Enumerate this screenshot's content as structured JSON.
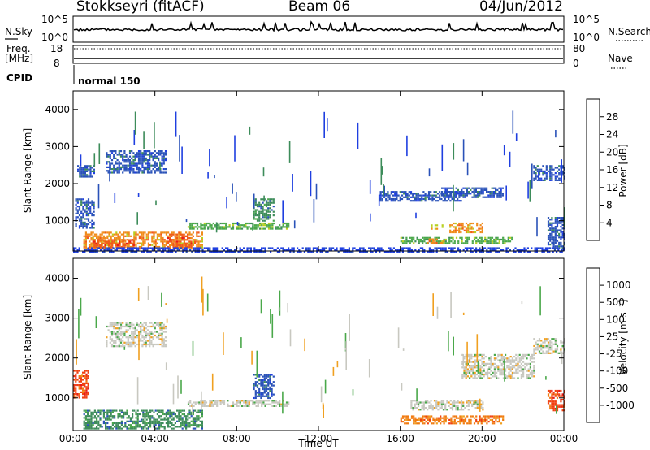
{
  "header": {
    "site": "Stokkseyri (fitACF)",
    "beam": "Beam 06",
    "date": "04/Jun/2012"
  },
  "top_panels": {
    "nsky_label": "N.Sky",
    "nsky_ticks": [
      "10^5",
      "10^0"
    ],
    "nsearch_label": "N.Search",
    "freq_label_1": "Freq.",
    "freq_label_2": "[MHz]",
    "freq_ticks": [
      "18",
      "8"
    ],
    "nave_ticks": [
      "80",
      "0"
    ],
    "nave_label": "Nave",
    "cpid_label": "CPID",
    "cpid_value": "normal 150"
  },
  "chart_data": [
    {
      "type": "heatmap",
      "name": "power",
      "ylabel": "Slant Range [km]",
      "yticks": [
        "1000",
        "2000",
        "3000",
        "4000"
      ],
      "ylim": [
        180,
        4500
      ],
      "xlim": [
        0,
        24
      ],
      "colorbar_label": "Power [dB]",
      "colorbar_ticks": [
        "4",
        "8",
        "12",
        "16",
        "20",
        "24",
        "28"
      ],
      "colorbar_colors": [
        "#1f3fe0",
        "#2a52b8",
        "#3d8c5a",
        "#4aa84a",
        "#b8d020",
        "#f08c1a",
        "#f05a1a",
        "#e81a1a"
      ],
      "regions": [
        {
          "t0": 0.5,
          "t1": 6.3,
          "r0": 250,
          "r1": 700,
          "level": 5
        },
        {
          "t0": 1.0,
          "t1": 3.0,
          "r0": 300,
          "r1": 500,
          "level": 6
        },
        {
          "t0": 4.6,
          "t1": 5.8,
          "r0": 300,
          "r1": 650,
          "level": 6
        },
        {
          "t0": 0.1,
          "t1": 1.0,
          "r0": 800,
          "r1": 1600,
          "level": 1
        },
        {
          "t0": 5.6,
          "t1": 10.5,
          "r0": 800,
          "r1": 950,
          "level": 3
        },
        {
          "t0": 8.8,
          "t1": 9.8,
          "r0": 1000,
          "r1": 1600,
          "level": 2
        },
        {
          "t0": 16.0,
          "t1": 21.5,
          "r0": 380,
          "r1": 560,
          "level": 3
        },
        {
          "t0": 17.3,
          "t1": 18.1,
          "r0": 400,
          "r1": 520,
          "level": 5
        },
        {
          "t0": 18.4,
          "t1": 20.0,
          "r0": 700,
          "r1": 950,
          "level": 5
        },
        {
          "t0": 17.5,
          "t1": 18.1,
          "r0": 800,
          "r1": 900,
          "level": 4
        },
        {
          "t0": 15.0,
          "t1": 19.0,
          "r0": 1550,
          "r1": 1800,
          "level": 1
        },
        {
          "t0": 18.0,
          "t1": 21.0,
          "r0": 1650,
          "r1": 1900,
          "level": 1
        },
        {
          "t0": 22.5,
          "t1": 24.0,
          "r0": 2100,
          "r1": 2500,
          "level": 1
        },
        {
          "t0": 0.2,
          "t1": 1.0,
          "r0": 2200,
          "r1": 2500,
          "level": 1
        },
        {
          "t0": 1.6,
          "t1": 4.5,
          "r0": 2300,
          "r1": 2900,
          "level": 1
        },
        {
          "t0": 23.2,
          "t1": 24.0,
          "r0": 250,
          "r1": 1100,
          "level": 1
        },
        {
          "t0": 0.0,
          "t1": 24.0,
          "r0": 180,
          "r1": 280,
          "level": 0
        }
      ]
    },
    {
      "type": "heatmap",
      "name": "velocity",
      "ylabel": "Slant Range [km]",
      "yticks": [
        "1000",
        "2000",
        "3000",
        "4000"
      ],
      "ylim": [
        180,
        4500
      ],
      "xlim": [
        0,
        24
      ],
      "xticks": [
        "00:00",
        "04:00",
        "08:00",
        "12:00",
        "16:00",
        "20:00",
        "00:00"
      ],
      "xlabel": "Time UT",
      "colorbar_label": "Velocity [m s⁻¹]",
      "colorbar_ticks": [
        "1000",
        "500",
        "100",
        "25",
        "-25",
        "-100",
        "-500",
        "-1000"
      ],
      "colorbar_colors": [
        "#1f3fe0",
        "#2a52b8",
        "#3d8c5a",
        "#4aa84a",
        "#c8c8c0",
        "#f0a020",
        "#f07a10",
        "#f04010",
        "#e81a1a"
      ],
      "regions": [
        {
          "t0": 0.5,
          "t1": 6.3,
          "r0": 250,
          "r1": 700,
          "level": 2
        },
        {
          "t0": 0.0,
          "t1": 0.7,
          "r0": 1000,
          "r1": 1700,
          "level": 7
        },
        {
          "t0": 5.6,
          "t1": 10.5,
          "r0": 800,
          "r1": 950,
          "level": 4
        },
        {
          "t0": 8.8,
          "t1": 9.8,
          "r0": 1000,
          "r1": 1600,
          "level": 1
        },
        {
          "t0": 16.0,
          "t1": 21.0,
          "r0": 380,
          "r1": 560,
          "level": 6
        },
        {
          "t0": 16.5,
          "t1": 20.0,
          "r0": 700,
          "r1": 950,
          "level": 4
        },
        {
          "t0": 19.0,
          "t1": 22.5,
          "r0": 1500,
          "r1": 2100,
          "level": 4
        },
        {
          "t0": 1.6,
          "t1": 4.5,
          "r0": 2300,
          "r1": 2900,
          "level": 4
        },
        {
          "t0": 22.5,
          "t1": 24.0,
          "r0": 2100,
          "r1": 2500,
          "level": 4
        },
        {
          "t0": 23.2,
          "t1": 24.0,
          "r0": 700,
          "r1": 1200,
          "level": 7
        }
      ]
    }
  ]
}
